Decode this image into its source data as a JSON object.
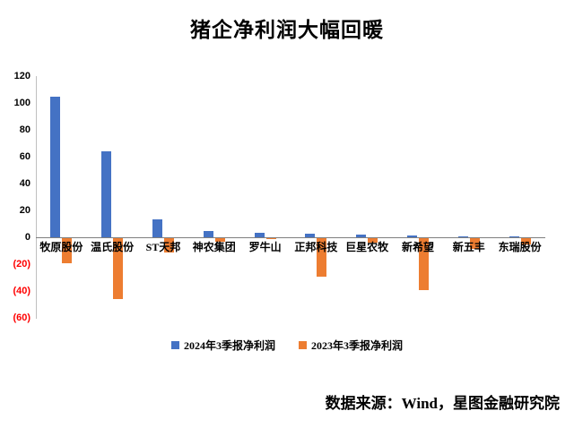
{
  "title": "猪企净利润大幅回暖",
  "source": "数据来源：Wind，星图金融研究院",
  "colors": {
    "series_2024": "#4472C4",
    "series_2023": "#ED7D31",
    "negative_tick": "#FF0000",
    "axis_line": "#BFBFBF",
    "zero_line": "#7F7F7F"
  },
  "chart_data": {
    "type": "bar",
    "title": "猪企净利润大幅回暖",
    "categories": [
      "牧原股份",
      "温氏股份",
      "ST天邦",
      "神农集团",
      "罗牛山",
      "正邦科技",
      "巨星农牧",
      "新希望",
      "新五丰",
      "东瑞股份"
    ],
    "series": [
      {
        "name": "2024年3季报净利润",
        "color": "#4472C4",
        "values": [
          104.8,
          64.1,
          13.1,
          4.9,
          3.4,
          3.0,
          2.1,
          1.5,
          0.3,
          0.2
        ]
      },
      {
        "name": "2023年3季报净利润",
        "color": "#ED7D31",
        "values": [
          -18.4,
          -45.3,
          -10.6,
          -2.9,
          -0.5,
          -28.7,
          -3.1,
          -38.6,
          -7.9,
          -4.4
        ]
      }
    ],
    "ylim": [
      -60,
      120
    ],
    "yticks": [
      120,
      100,
      80,
      60,
      40,
      20,
      0,
      -20,
      -40,
      -60
    ],
    "ytick_negative_format": "parentheses",
    "grid": false,
    "legend_position": "bottom",
    "xlabel": "",
    "ylabel": ""
  }
}
